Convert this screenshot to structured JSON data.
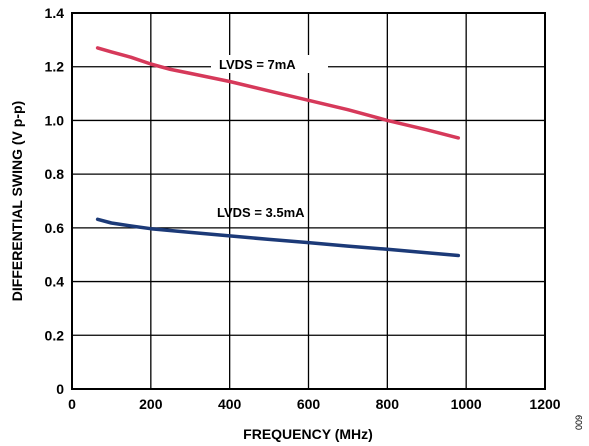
{
  "chart_data": {
    "type": "line",
    "xlabel": "FREQUENCY (MHz)",
    "ylabel": "DIFFERENTIAL SWING (V p-p)",
    "xlim": [
      0,
      1200
    ],
    "ylim": [
      0,
      1.4
    ],
    "xticks": [
      0,
      200,
      400,
      600,
      800,
      1000,
      1200
    ],
    "yticks": [
      0,
      0.2,
      0.4,
      0.6,
      0.8,
      1.0,
      1.2,
      1.4
    ],
    "xtick_labels": [
      "0",
      "200",
      "400",
      "600",
      "800",
      "1000",
      "1200"
    ],
    "ytick_labels": [
      "0",
      "0.2",
      "0.4",
      "0.6",
      "0.8",
      "1.0",
      "1.2",
      "1.4"
    ],
    "grid": true,
    "series": [
      {
        "name": "LVDS = 7mA",
        "color": "#d6395a",
        "x": [
          65,
          100,
          150,
          200,
          250,
          300,
          400,
          500,
          600,
          700,
          800,
          900,
          980
        ],
        "y": [
          1.27,
          1.255,
          1.235,
          1.21,
          1.19,
          1.175,
          1.145,
          1.11,
          1.075,
          1.04,
          1.0,
          0.965,
          0.935
        ]
      },
      {
        "name": "LVDS = 3.5mA",
        "color": "#1c3a78",
        "x": [
          65,
          100,
          150,
          200,
          300,
          400,
          500,
          600,
          700,
          800,
          900,
          980
        ],
        "y": [
          0.632,
          0.618,
          0.607,
          0.597,
          0.583,
          0.57,
          0.557,
          0.545,
          0.532,
          0.52,
          0.507,
          0.497
        ]
      }
    ],
    "annotations": [
      "LVDS = 7mA",
      "LVDS = 3.5mA"
    ]
  },
  "figure_id": "009"
}
